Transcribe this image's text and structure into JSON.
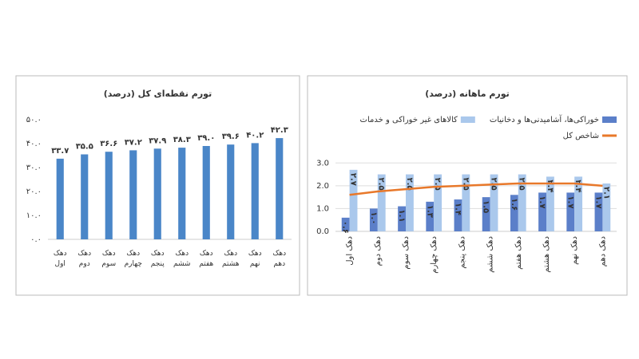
{
  "chart_data": [
    {
      "type": "bar",
      "title": "تورم نقطه‌ای کل (درصد)",
      "categories": [
        "دهک اول",
        "دهک دوم",
        "دهک سوم",
        "دهک چهارم",
        "دهک پنجم",
        "دهک ششم",
        "دهک هفتم",
        "دهک هشتم",
        "دهک نهم",
        "دهک دهم"
      ],
      "values": [
        33.7,
        35.5,
        36.6,
        37.2,
        37.9,
        38.3,
        39.0,
        39.6,
        40.2,
        42.3
      ],
      "value_labels": [
        "۳۳.۷",
        "۳۵.۵",
        "۳۶.۶",
        "۳۷.۲",
        "۳۷.۹",
        "۳۸.۳",
        "۳۹.۰",
        "۳۹.۶",
        "۴۰.۲",
        "۴۲.۳"
      ],
      "color": "#4a86c8",
      "ylim": [
        0,
        50
      ],
      "yticks": [
        {
          "value": 0,
          "label": "۰.۰"
        },
        {
          "value": 10,
          "label": "۱۰.۰"
        },
        {
          "value": 20,
          "label": "۲۰.۰"
        },
        {
          "value": 30,
          "label": "۳۰.۰"
        },
        {
          "value": 40,
          "label": "۴۰.۰"
        },
        {
          "value": 50,
          "label": "۵۰.۰"
        }
      ],
      "grid": false
    },
    {
      "type": "bar",
      "title": "تورم ماهانه (درصد)",
      "categories": [
        "دهک اول",
        "دهک دوم",
        "دهک سوم",
        "دهک چهارم",
        "دهک پنجم",
        "دهک ششم",
        "دهک هفتم",
        "دهک هشتم",
        "دهک نهم",
        "دهک دهم"
      ],
      "series": [
        {
          "name": "خوراکی‌ها، آشامیدنی‌ها و دخانیات",
          "type": "bar",
          "color": "#5b7fc9",
          "values": [
            0.6,
            1.0,
            1.1,
            1.3,
            1.4,
            1.5,
            1.6,
            1.7,
            1.7,
            1.7
          ],
          "value_labels": [
            "۰.۶",
            "۱.۰",
            "۱.۱",
            "۱.۳",
            "۱.۴",
            "۱.۵",
            "۱.۶",
            "۱.۷",
            "۱.۷",
            "۱.۷"
          ]
        },
        {
          "name": "کالاهای غیر خوراکی و خدمات",
          "type": "bar",
          "color": "#aac8ec",
          "values": [
            2.7,
            2.5,
            2.5,
            2.5,
            2.5,
            2.5,
            2.5,
            2.4,
            2.4,
            2.1
          ],
          "value_labels": [
            "۲.۷",
            "۲.۵",
            "۲.۵",
            "۲.۵",
            "۲.۵",
            "۲.۵",
            "۲.۵",
            "۲.۴",
            "۲.۴",
            "۲.۱"
          ]
        },
        {
          "name": "شاخص کل",
          "type": "line",
          "color": "#e8782a",
          "values": [
            1.6,
            1.75,
            1.85,
            1.95,
            2.0,
            2.05,
            2.1,
            2.1,
            2.1,
            2.0
          ]
        }
      ],
      "ylim": [
        0,
        3.5
      ],
      "yticks": [
        {
          "value": 0,
          "label": "0.0"
        },
        {
          "value": 1,
          "label": "1.0"
        },
        {
          "value": 2,
          "label": "2.0"
        },
        {
          "value": 3,
          "label": "3.0"
        }
      ],
      "grid": true
    }
  ]
}
